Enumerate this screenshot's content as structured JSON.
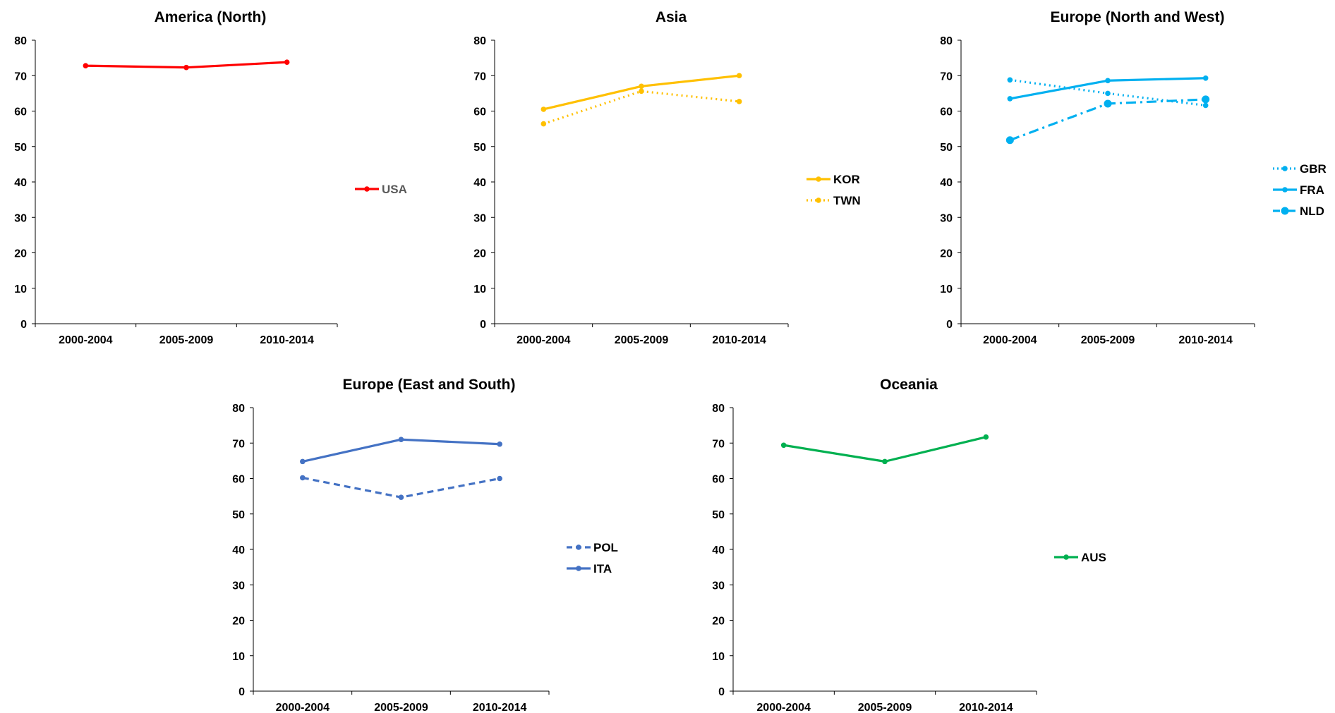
{
  "chart_data": [
    {
      "type": "line",
      "title": "America (North)",
      "categories": [
        "2000-2004",
        "2005-2009",
        "2010-2014"
      ],
      "ylim": [
        0,
        80
      ],
      "yticks": [
        0,
        10,
        20,
        30,
        40,
        50,
        60,
        70,
        80
      ],
      "legend": "right",
      "grid": false,
      "series": [
        {
          "name": "USA",
          "values": [
            72.8,
            72.3,
            73.8
          ],
          "color": "#FF0000",
          "dash": "solid",
          "marker": "small",
          "label_color": "#595959"
        }
      ]
    },
    {
      "type": "line",
      "title": "Asia",
      "categories": [
        "2000-2004",
        "2005-2009",
        "2010-2014"
      ],
      "ylim": [
        0,
        80
      ],
      "yticks": [
        0,
        10,
        20,
        30,
        40,
        50,
        60,
        70,
        80
      ],
      "legend": "right",
      "grid": false,
      "series": [
        {
          "name": "KOR",
          "values": [
            60.5,
            67.0,
            70.0
          ],
          "color": "#FFC000",
          "dash": "solid",
          "marker": "small",
          "label_color": "#000000"
        },
        {
          "name": "TWN",
          "values": [
            56.4,
            65.6,
            62.7
          ],
          "color": "#FFC000",
          "dash": "dotted",
          "marker": "small",
          "label_color": "#000000"
        }
      ]
    },
    {
      "type": "line",
      "title": "Europe (North and West)",
      "categories": [
        "2000-2004",
        "2005-2009",
        "2010-2014"
      ],
      "ylim": [
        0,
        80
      ],
      "yticks": [
        0,
        10,
        20,
        30,
        40,
        50,
        60,
        70,
        80
      ],
      "legend": "right",
      "grid": false,
      "series": [
        {
          "name": "GBR",
          "values": [
            68.8,
            65.0,
            61.6
          ],
          "color": "#00B0F0",
          "dash": "dotted",
          "marker": "small",
          "label_color": "#000000"
        },
        {
          "name": "FRA",
          "values": [
            63.5,
            68.6,
            69.3
          ],
          "color": "#00B0F0",
          "dash": "solid",
          "marker": "small",
          "label_color": "#000000"
        },
        {
          "name": "NLD",
          "values": [
            51.8,
            62.1,
            63.3
          ],
          "color": "#00B0F0",
          "dash": "dashdot",
          "marker": "large",
          "label_color": "#000000"
        }
      ]
    },
    {
      "type": "line",
      "title": "Europe (East and South)",
      "categories": [
        "2000-2004",
        "2005-2009",
        "2010-2014"
      ],
      "ylim": [
        0,
        80
      ],
      "yticks": [
        0,
        10,
        20,
        30,
        40,
        50,
        60,
        70,
        80
      ],
      "legend": "right",
      "grid": false,
      "series": [
        {
          "name": "POL",
          "values": [
            60.2,
            54.7,
            60.0
          ],
          "color": "#4472C4",
          "dash": "dashed",
          "marker": "small",
          "label_color": "#000000"
        },
        {
          "name": "ITA",
          "values": [
            64.8,
            71.0,
            69.7
          ],
          "color": "#4472C4",
          "dash": "solid",
          "marker": "small",
          "label_color": "#000000"
        }
      ]
    },
    {
      "type": "line",
      "title": "Oceania",
      "categories": [
        "2000-2004",
        "2005-2009",
        "2010-2014"
      ],
      "ylim": [
        0,
        80
      ],
      "yticks": [
        0,
        10,
        20,
        30,
        40,
        50,
        60,
        70,
        80
      ],
      "legend": "right",
      "grid": false,
      "series": [
        {
          "name": "AUS",
          "values": [
            69.4,
            64.8,
            71.7
          ],
          "color": "#00B050",
          "dash": "solid",
          "marker": "small",
          "label_color": "#000000"
        }
      ]
    }
  ]
}
